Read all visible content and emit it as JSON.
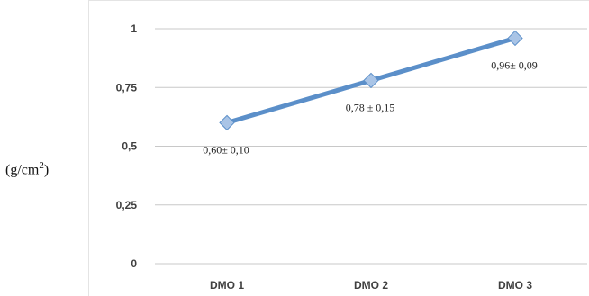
{
  "chart_data": {
    "type": "line",
    "categories": [
      "DMO 1",
      "DMO 2",
      "DMO 3"
    ],
    "series": [
      {
        "values": [
          0.6,
          0.78,
          0.96
        ]
      }
    ],
    "data_labels": [
      "0,60± 0,10",
      "0,78 ± 0,15",
      "0,96± 0,09"
    ],
    "yticks": [
      {
        "value": 0,
        "label": "0"
      },
      {
        "value": 0.25,
        "label": "0,25"
      },
      {
        "value": 0.5,
        "label": "0,5"
      },
      {
        "value": 0.75,
        "label": "0,75"
      },
      {
        "value": 1,
        "label": "1"
      }
    ],
    "ylim": [
      0,
      1
    ],
    "ylabel": {
      "base": "(g/cm",
      "sup": "2",
      "close": ")"
    },
    "grid": true,
    "line_color": "#5b8fc9",
    "marker_color": "#a9c4e6",
    "grid_color": "#c8c8c8"
  }
}
